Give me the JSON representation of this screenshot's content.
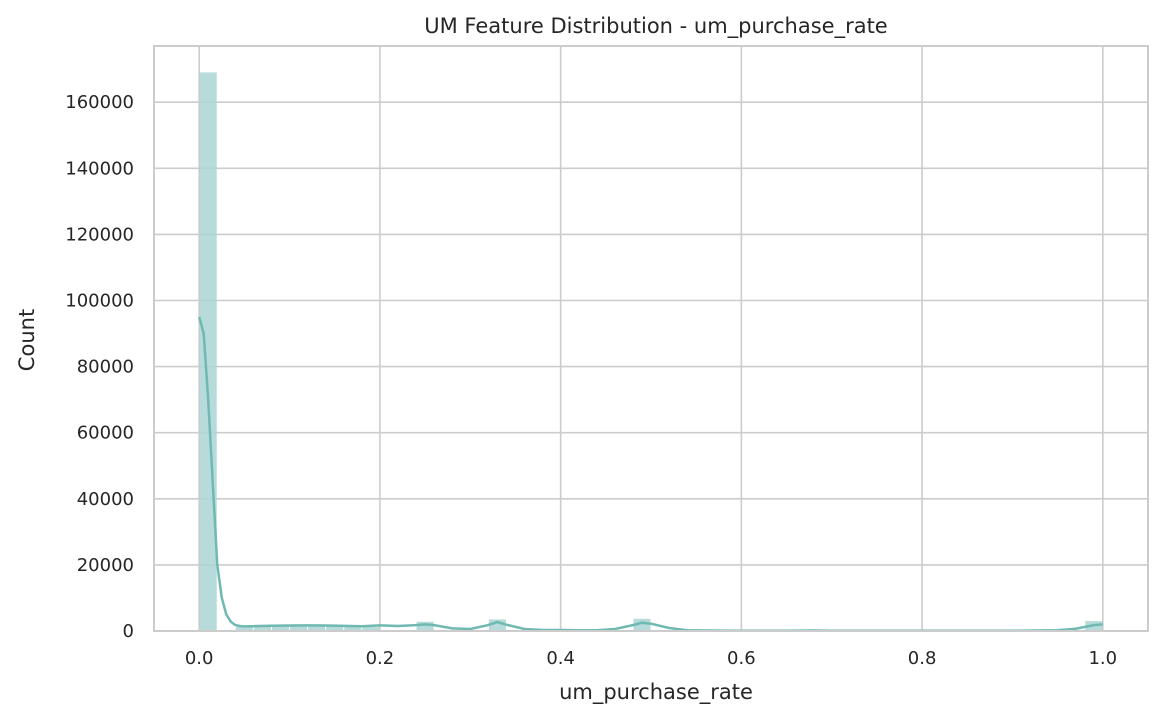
{
  "chart_data": {
    "type": "bar",
    "title": "UM Feature Distribution - um_purchase_rate",
    "xlabel": "um_purchase_rate",
    "ylabel": "Count",
    "xlim": [
      -0.05,
      1.05
    ],
    "ylim": [
      0,
      177000
    ],
    "xticks": [
      0.0,
      0.2,
      0.4,
      0.6,
      0.8,
      1.0
    ],
    "xtick_labels": [
      "0.0",
      "0.2",
      "0.4",
      "0.6",
      "0.8",
      "1.0"
    ],
    "yticks": [
      0,
      20000,
      40000,
      60000,
      80000,
      100000,
      120000,
      140000,
      160000
    ],
    "ytick_labels": [
      "0",
      "20000",
      "40000",
      "60000",
      "80000",
      "100000",
      "120000",
      "140000",
      "160000"
    ],
    "grid": true,
    "bar_color": "#a9d5d3",
    "kde_color": "#6fb9b1",
    "bin_width": 0.02,
    "bins": [
      {
        "x0": 0.0,
        "count": 169000
      },
      {
        "x0": 0.04,
        "count": 1200
      },
      {
        "x0": 0.06,
        "count": 1300
      },
      {
        "x0": 0.08,
        "count": 1400
      },
      {
        "x0": 0.1,
        "count": 1500
      },
      {
        "x0": 0.12,
        "count": 1500
      },
      {
        "x0": 0.14,
        "count": 1400
      },
      {
        "x0": 0.16,
        "count": 1300
      },
      {
        "x0": 0.18,
        "count": 1200
      },
      {
        "x0": 0.24,
        "count": 2800
      },
      {
        "x0": 0.32,
        "count": 3500
      },
      {
        "x0": 0.48,
        "count": 3700
      },
      {
        "x0": 0.98,
        "count": 3000
      }
    ],
    "kde": {
      "x": [
        0.0,
        0.005,
        0.01,
        0.015,
        0.02,
        0.025,
        0.03,
        0.035,
        0.04,
        0.045,
        0.05,
        0.06,
        0.08,
        0.1,
        0.12,
        0.14,
        0.16,
        0.18,
        0.2,
        0.22,
        0.24,
        0.25,
        0.26,
        0.28,
        0.3,
        0.32,
        0.33,
        0.34,
        0.36,
        0.38,
        0.4,
        0.42,
        0.44,
        0.46,
        0.48,
        0.49,
        0.5,
        0.52,
        0.54,
        0.56,
        0.6,
        0.65,
        0.68,
        0.7,
        0.75,
        0.8,
        0.85,
        0.9,
        0.95,
        0.97,
        0.99,
        1.0
      ],
      "y": [
        95000,
        90000,
        70000,
        45000,
        20000,
        10000,
        5000,
        2800,
        1800,
        1500,
        1400,
        1450,
        1600,
        1650,
        1700,
        1650,
        1550,
        1450,
        1700,
        1500,
        1800,
        2000,
        1800,
        800,
        600,
        1800,
        2700,
        1900,
        600,
        300,
        300,
        250,
        250,
        600,
        1800,
        2500,
        2200,
        900,
        250,
        150,
        100,
        100,
        150,
        100,
        60,
        50,
        50,
        60,
        200,
        700,
        1800,
        2000
      ]
    }
  }
}
